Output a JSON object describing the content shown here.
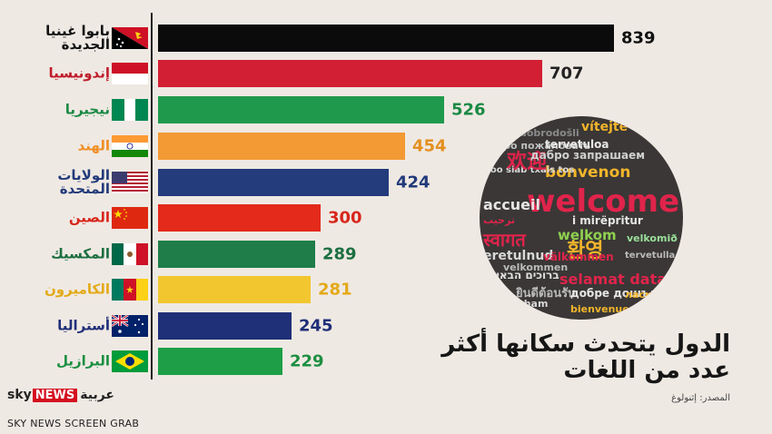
{
  "chart_data": {
    "type": "bar",
    "orientation": "horizontal",
    "title": "الدول يتحدث سكانها أكثر عدد من اللغات",
    "categories": [
      "بابوا غينيا الجديدة",
      "إندونيسيا",
      "نيجيريا",
      "الهند",
      "الولايات المتحدة",
      "الصين",
      "المكسيك",
      "الكاميرون",
      "أستراليا",
      "البرازيل"
    ],
    "values": [
      839,
      707,
      526,
      454,
      424,
      300,
      289,
      281,
      245,
      229
    ],
    "label_lines": [
      [
        "بابوا غينيا",
        "الجديدة"
      ],
      [
        "إندونيسيا"
      ],
      [
        "نيجيريا"
      ],
      [
        "الهند"
      ],
      [
        "الولايات",
        "المتحدة"
      ],
      [
        "الصين"
      ],
      [
        "المكسيك"
      ],
      [
        "الكاميرون"
      ],
      [
        "أستراليا"
      ],
      [
        "البرازيل"
      ]
    ],
    "colors": [
      "#0b0b0b",
      "#d21f33",
      "#1f9a4d",
      "#f39a34",
      "#243c7c",
      "#e42a1b",
      "#1e7d48",
      "#f2c62f",
      "#1f2f78",
      "#1e9f47"
    ],
    "label_colors": [
      "#111111",
      "#c01d2c",
      "#1a8a44",
      "#f08f26",
      "#223a7a",
      "#d8261b",
      "#1c6f41",
      "#e3a918",
      "#1f2f78",
      "#1c8f41"
    ],
    "value_colors": [
      "#111111",
      "#222222",
      "#1a8a44",
      "#e39020",
      "#223a7a",
      "#d8261b",
      "#1c6f41",
      "#e3a918",
      "#1f2f78",
      "#1c8f41"
    ],
    "flags": [
      "papua-new-guinea-flag",
      "indonesia-flag",
      "nigeria-flag",
      "india-flag",
      "usa-flag",
      "china-flag",
      "mexico-flag",
      "cameroon-flag",
      "australia-flag",
      "brazil-flag"
    ],
    "xlim": [
      0,
      839
    ]
  },
  "title_lines": [
    "الدول يتحدث سكانها أكثر",
    "عدد من اللغات"
  ],
  "source": "المصدر: إثنولوغ",
  "logo": {
    "sky": "sky",
    "news": "NEWS",
    "arabic": "عربية"
  },
  "watermark": "SKY NEWS SCREEN GRAB",
  "word_cloud": [
    "vítejte",
    "dobrodošli",
    "добро пожаловать",
    "tervetuloa",
    "welcome",
    "bonvenon",
    "zoo siab txais tos",
    "accueil",
    "欢迎",
    "дабро запрашаем",
    "i mirëpritur",
    "welkom",
    "ترحيب",
    "स्वागत",
    "환영",
    "velkomið",
    "selamat datang",
    "tervetulla",
    "eretulnud",
    "ברוכים הבאים",
    "ยินดีต้อนรับ",
    "добре дошъл",
    "bienvenue",
    "velkommen",
    "swagatham",
    "välkommen",
    "ласкаво просимо"
  ]
}
